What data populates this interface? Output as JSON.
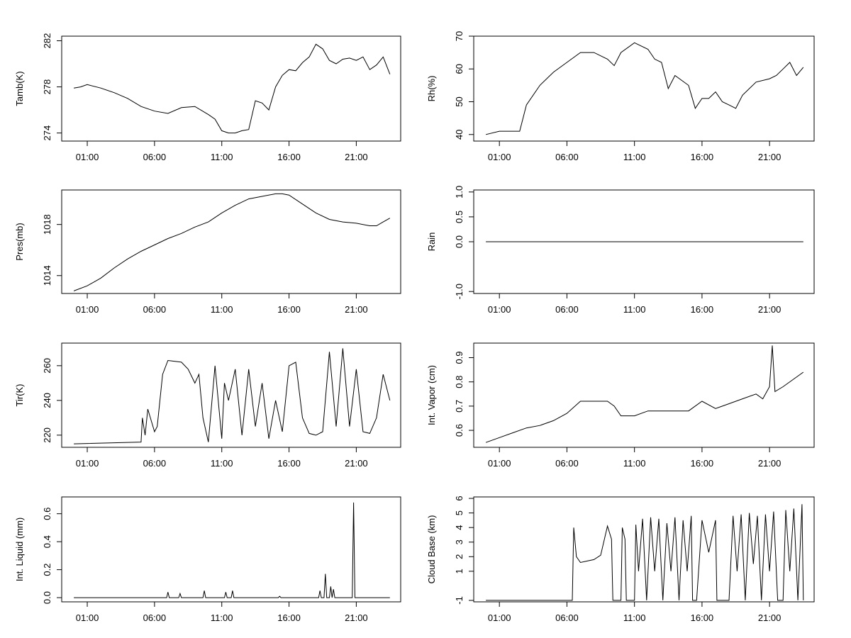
{
  "x_ticks": [
    "01:00",
    "06:00",
    "11:00",
    "16:00",
    "21:00"
  ],
  "chart_data": [
    {
      "type": "line",
      "ylabel": "Tamb(K)",
      "xlabel": "",
      "x_ticks": [
        "01:00",
        "06:00",
        "11:00",
        "16:00",
        "21:00"
      ],
      "y_ticks": [
        "274",
        "278",
        "282"
      ],
      "ylim": [
        273.3,
        282.4
      ],
      "x_unit": "hours",
      "xlim": [
        -0.9,
        24.3
      ],
      "series": [
        {
          "x": [
            0,
            0.5,
            1,
            2,
            3,
            4,
            5,
            6,
            7,
            8,
            9,
            10,
            10.5,
            11,
            11.5,
            12,
            12.5,
            13,
            13.5,
            14,
            14.5,
            15,
            15.5,
            16,
            16.5,
            17,
            17.5,
            18,
            18.5,
            19,
            19.5,
            20,
            20.5,
            21,
            21.5,
            22,
            22.5,
            23,
            23.5
          ],
          "y": [
            277.9,
            278.0,
            278.2,
            277.9,
            277.5,
            277.0,
            276.3,
            275.9,
            275.7,
            276.2,
            276.3,
            275.6,
            275.2,
            274.2,
            274.0,
            274.0,
            274.2,
            274.3,
            276.8,
            276.6,
            276.0,
            278.0,
            279.0,
            279.5,
            279.4,
            280.1,
            280.6,
            281.7,
            281.3,
            280.3,
            280.0,
            280.4,
            280.5,
            280.3,
            280.6,
            279.5,
            279.9,
            280.6,
            279.1
          ]
        }
      ]
    },
    {
      "type": "line",
      "ylabel": "Rh(%)",
      "xlabel": "",
      "x_ticks": [
        "01:00",
        "06:00",
        "11:00",
        "16:00",
        "21:00"
      ],
      "y_ticks": [
        "40",
        "50",
        "60",
        "70"
      ],
      "ylim": [
        38,
        70
      ],
      "x_unit": "hours",
      "xlim": [
        -0.9,
        24.3
      ],
      "series": [
        {
          "x": [
            0,
            1,
            2,
            2.5,
            3,
            4,
            5,
            6,
            7,
            8,
            9,
            9.5,
            10,
            11,
            12,
            12.5,
            13,
            13.5,
            14,
            15,
            15.5,
            16,
            16.5,
            17,
            17.5,
            18,
            18.5,
            19,
            20,
            21,
            21.5,
            22,
            22.5,
            23,
            23.5
          ],
          "y": [
            40.0,
            41.0,
            41.0,
            41.0,
            49.0,
            55.0,
            59.0,
            62.0,
            65.0,
            65.0,
            63.0,
            61.0,
            65.0,
            68.0,
            66.0,
            63.0,
            62.0,
            54.0,
            58.0,
            55.0,
            48.0,
            51.0,
            51.0,
            53.0,
            50.0,
            49.0,
            48.0,
            52.0,
            56.0,
            57.0,
            58.0,
            60.0,
            62.0,
            58.0,
            60.5
          ]
        }
      ]
    },
    {
      "type": "line",
      "ylabel": "Pres(mb)",
      "xlabel": "",
      "x_ticks": [
        "01:00",
        "06:00",
        "11:00",
        "16:00",
        "21:00"
      ],
      "y_ticks": [
        "1014",
        "1018"
      ],
      "ylim": [
        1012.6,
        1020.7
      ],
      "x_unit": "hours",
      "xlim": [
        -0.9,
        24.3
      ],
      "series": [
        {
          "x": [
            0,
            1,
            2,
            3,
            4,
            5,
            6,
            7,
            8,
            9,
            10,
            11,
            12,
            13,
            14,
            15,
            15.5,
            16,
            17,
            18,
            19,
            20,
            21,
            22,
            22.5,
            23,
            23.5
          ],
          "y": [
            1012.8,
            1013.2,
            1013.8,
            1014.6,
            1015.3,
            1015.9,
            1016.4,
            1016.9,
            1017.3,
            1017.8,
            1018.2,
            1018.9,
            1019.5,
            1020.0,
            1020.2,
            1020.4,
            1020.4,
            1020.3,
            1019.6,
            1018.9,
            1018.4,
            1018.2,
            1018.1,
            1017.9,
            1017.9,
            1018.2,
            1018.5
          ]
        }
      ]
    },
    {
      "type": "line",
      "ylabel": "Rain",
      "xlabel": "",
      "x_ticks": [
        "01:00",
        "06:00",
        "11:00",
        "16:00",
        "21:00"
      ],
      "y_ticks": [
        "-1.0",
        "0.0",
        "0.5",
        "1.0"
      ],
      "ylim": [
        -1.04,
        1.04
      ],
      "x_unit": "hours",
      "xlim": [
        -0.9,
        24.3
      ],
      "series": [
        {
          "x": [
            0,
            23.5
          ],
          "y": [
            0,
            0
          ]
        }
      ]
    },
    {
      "type": "line",
      "ylabel": "Tir(K)",
      "xlabel": "",
      "x_ticks": [
        "01:00",
        "06:00",
        "11:00",
        "16:00",
        "21:00"
      ],
      "y_ticks": [
        "220",
        "240",
        "260"
      ],
      "ylim": [
        213,
        273
      ],
      "x_unit": "hours",
      "xlim": [
        -0.9,
        24.3
      ],
      "series": [
        {
          "x": [
            0,
            5,
            5.1,
            5.3,
            5.5,
            6,
            6.2,
            6.6,
            7,
            8,
            8.5,
            9,
            9.3,
            9.6,
            10,
            10.5,
            11,
            11.2,
            11.5,
            12,
            12.5,
            13,
            13.5,
            14,
            14.5,
            15,
            15.5,
            16,
            16.5,
            17,
            17.5,
            18,
            18.5,
            19,
            19.5,
            20,
            20.5,
            21,
            21.5,
            22,
            22.5,
            23,
            23.5
          ],
          "y": [
            215,
            216,
            230,
            220,
            235,
            222,
            225,
            255,
            263,
            262,
            258,
            250,
            255,
            230,
            216,
            260,
            218,
            250,
            240,
            258,
            220,
            258,
            225,
            250,
            218,
            240,
            222,
            260,
            262,
            230,
            221,
            220,
            222,
            268,
            225,
            270,
            225,
            258,
            222,
            221,
            230,
            255,
            240
          ]
        }
      ]
    },
    {
      "type": "line",
      "ylabel": "Int. Vapor (cm)",
      "xlabel": "",
      "x_ticks": [
        "01:00",
        "06:00",
        "11:00",
        "16:00",
        "21:00"
      ],
      "y_ticks": [
        "0.6",
        "0.7",
        "0.8",
        "0.9"
      ],
      "ylim": [
        0.53,
        0.96
      ],
      "x_unit": "hours",
      "xlim": [
        -0.9,
        24.3
      ],
      "series": [
        {
          "x": [
            0,
            1,
            2,
            3,
            4,
            5,
            6,
            7,
            8,
            9,
            9.5,
            10,
            11,
            12,
            13,
            14,
            15,
            16,
            17,
            18,
            19,
            20,
            20.5,
            21,
            21.2,
            21.4,
            22,
            23,
            23.5
          ],
          "y": [
            0.55,
            0.57,
            0.59,
            0.61,
            0.62,
            0.64,
            0.67,
            0.72,
            0.72,
            0.72,
            0.7,
            0.66,
            0.66,
            0.68,
            0.68,
            0.68,
            0.68,
            0.72,
            0.69,
            0.71,
            0.73,
            0.75,
            0.73,
            0.78,
            0.95,
            0.76,
            0.78,
            0.82,
            0.84
          ]
        }
      ]
    },
    {
      "type": "line",
      "ylabel": "Int. Liquid (mm)",
      "xlabel": "",
      "x_ticks": [
        "01:00",
        "06:00",
        "11:00",
        "16:00",
        "21:00"
      ],
      "y_ticks": [
        "0.0",
        "0.2",
        "0.4",
        "0.6"
      ],
      "ylim": [
        -0.03,
        0.72
      ],
      "x_unit": "hours",
      "xlim": [
        -0.9,
        24.3
      ],
      "series": [
        {
          "x": [
            0,
            6.9,
            7,
            7.1,
            7.8,
            7.9,
            8,
            9.6,
            9.7,
            9.8,
            11.2,
            11.3,
            11.4,
            11.7,
            11.8,
            11.9,
            15.2,
            15.3,
            15.4,
            18.2,
            18.3,
            18.4,
            18.6,
            18.7,
            18.8,
            19,
            19.1,
            19.2,
            19.3,
            19.4,
            20.7,
            20.8,
            20.9,
            23.5
          ],
          "y": [
            0,
            0,
            0.04,
            0,
            0,
            0.03,
            0,
            0,
            0.05,
            0,
            0,
            0.04,
            0,
            0,
            0.05,
            0,
            0,
            0.01,
            0,
            0,
            0.05,
            0,
            0,
            0.17,
            0,
            0,
            0.08,
            0,
            0.06,
            0,
            0,
            0.68,
            0,
            0
          ]
        }
      ]
    },
    {
      "type": "line",
      "ylabel": "Cloud Base (km)",
      "xlabel": "",
      "x_ticks": [
        "01:00",
        "06:00",
        "11:00",
        "16:00",
        "21:00"
      ],
      "y_ticks": [
        "-1",
        "1",
        "2",
        "3",
        "4",
        "5",
        "6"
      ],
      "ylim": [
        -1.1,
        6.1
      ],
      "x_unit": "hours",
      "xlim": [
        -0.9,
        24.3
      ],
      "series": [
        {
          "x": [
            0,
            6.4,
            6.5,
            6.7,
            7,
            7.5,
            8,
            8.5,
            9,
            9.3,
            9.4,
            10,
            10.1,
            10.3,
            10.4,
            11,
            11.1,
            11.3,
            11.6,
            11.9,
            12.2,
            12.5,
            12.8,
            13.1,
            13.4,
            13.7,
            14,
            14.3,
            14.6,
            14.9,
            15.2,
            15.3,
            15.4,
            15.6,
            16,
            16.5,
            17,
            17.1,
            17.2,
            18,
            18.3,
            18.6,
            18.9,
            19.2,
            19.5,
            19.8,
            20.1,
            20.4,
            20.7,
            21,
            21.3,
            21.6,
            22,
            22.2,
            22.5,
            22.8,
            23.1,
            23.4,
            23.5
          ],
          "y": [
            -1,
            -1,
            4,
            2,
            1.6,
            1.7,
            1.8,
            2.1,
            4.1,
            3.2,
            -1,
            -1,
            4,
            3.2,
            -1,
            -1,
            4.2,
            1,
            4.6,
            -1,
            4.7,
            1,
            4.6,
            -1,
            4.3,
            1,
            4.7,
            -1,
            4.5,
            1,
            4.8,
            -1,
            -1,
            -1,
            4.5,
            2.3,
            4.5,
            -1,
            -1,
            -1,
            4.8,
            1,
            4.9,
            -1,
            5,
            1.5,
            4.8,
            -1,
            4.9,
            1,
            5.1,
            -1,
            -1,
            5.2,
            1,
            5.3,
            -1,
            5.6,
            -1
          ]
        }
      ]
    }
  ]
}
